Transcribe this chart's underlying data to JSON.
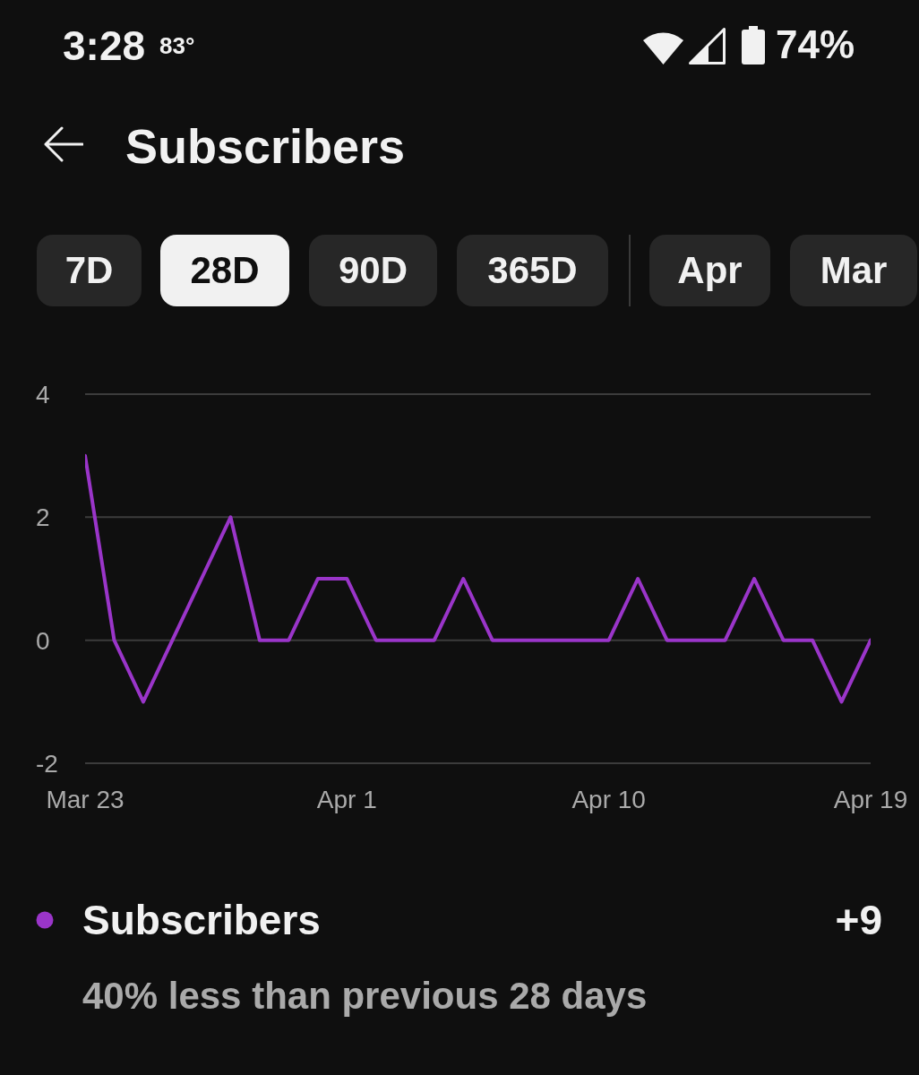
{
  "chart_data": {
    "type": "line",
    "title": "Subscribers",
    "x": [
      "--03-23",
      "--03-24",
      "--03-25",
      "--03-26",
      "--03-27",
      "--03-28",
      "--03-29",
      "--03-30",
      "--03-31",
      "--04-01",
      "--04-02",
      "--04-03",
      "--04-04",
      "--04-05",
      "--04-06",
      "--04-07",
      "--04-08",
      "--04-09",
      "--04-10",
      "--04-11",
      "--04-12",
      "--04-13",
      "--04-14",
      "--04-15",
      "--04-16",
      "--04-17",
      "--04-18",
      "--04-19"
    ],
    "xlim": [
      "--03-23",
      "--04-19"
    ],
    "xticks": [
      {
        "value": "--03-23",
        "label": "Mar 23"
      },
      {
        "value": "--04-01",
        "label": "Apr 1"
      },
      {
        "value": "--04-10",
        "label": "Apr 10"
      },
      {
        "value": "--04-19",
        "label": "Apr 19"
      }
    ],
    "ylim": [
      -2,
      4
    ],
    "yticks": [
      -2,
      0,
      2,
      4
    ],
    "grid": "y",
    "legend": "bottom",
    "series": [
      {
        "name": "Subscribers",
        "color": "#9a35c9",
        "values": [
          3,
          0,
          -1,
          0,
          1,
          2,
          0,
          0,
          1,
          1,
          0,
          0,
          0,
          1,
          0,
          0,
          0,
          0,
          0,
          1,
          0,
          0,
          0,
          1,
          0,
          0,
          -1,
          0
        ]
      }
    ],
    "annotations": [
      "3:28",
      "83°",
      "74%",
      "7D",
      "28D",
      "90D",
      "365D",
      "Apr",
      "Mar",
      "+9",
      "40% less than previous 28 days"
    ]
  }
}
